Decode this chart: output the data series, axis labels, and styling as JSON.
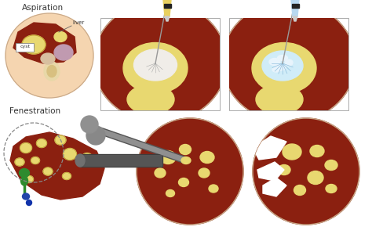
{
  "bg_color": "#ffffff",
  "title_aspiration": "Aspiration",
  "title_fenestration": "Fenestration",
  "liver_color": "#8B2010",
  "cyst_color": "#E8D870",
  "skin_color": "#F5D5B0",
  "label_liver": "liver",
  "label_cyst": "cyst",
  "needle_color": "#777777",
  "fluid_yellow": "#E8D060",
  "fluid_blue": "#B8D8F0",
  "sclerosant_color": "#D0ECF8",
  "green_bile": "#2E8B2E",
  "blue_portal": "#2244AA",
  "white_color": "#FFFFFF",
  "outline_color": "#C8A888",
  "syringe_yellow": "#E8D060",
  "syringe_blue": "#B8D8F0",
  "syringe_band": "#222222",
  "instrument_dark": "#555555",
  "instrument_light": "#909090"
}
